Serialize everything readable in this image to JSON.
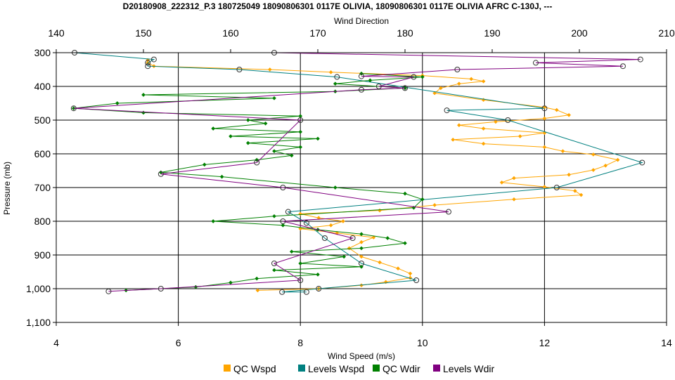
{
  "chart_data": {
    "type": "line",
    "title": "D20180908_222312_P.3 180725049 18090806301 0117E OLIVIA, 18090806301 0117E OLIVIA AFRC C-130J, ---",
    "xlabel_bottom": "Wind Speed (m/s)",
    "xlabel_top": "Wind Direction",
    "ylabel": "Pressure (mb)",
    "x_bottom_lim": [
      4,
      14
    ],
    "x_top_lim": [
      140,
      210
    ],
    "ylim": [
      300,
      1100
    ],
    "y_inverted": true,
    "grid": true,
    "legend_position": "bottom",
    "x_bottom_ticks": [
      "4",
      "6",
      "8",
      "10",
      "12",
      "14"
    ],
    "x_top_ticks": [
      "140",
      "150",
      "160",
      "170",
      "180",
      "190",
      "200",
      "210"
    ],
    "y_ticks": [
      "300",
      "400",
      "500",
      "600",
      "700",
      "800",
      "900",
      "1,000",
      "1,100"
    ],
    "colors": {
      "qc_wspd": "#FFA500",
      "levels_wspd": "#008080",
      "qc_wdir": "#008000",
      "levels_wdir": "#800080"
    },
    "series": [
      {
        "name": "QC Wspd",
        "axis": "bottom",
        "points": [
          [
            5.5,
            322
          ],
          [
            5.5,
            330
          ],
          [
            5.6,
            340
          ],
          [
            7.5,
            350
          ],
          [
            8.5,
            358
          ],
          [
            10.0,
            368
          ],
          [
            10.8,
            378
          ],
          [
            11.0,
            385
          ],
          [
            10.6,
            392
          ],
          [
            10.3,
            405
          ],
          [
            10.2,
            420
          ],
          [
            11.0,
            440
          ],
          [
            12.0,
            462
          ],
          [
            12.2,
            470
          ],
          [
            12.4,
            485
          ],
          [
            12.0,
            495
          ],
          [
            11.2,
            505
          ],
          [
            10.6,
            515
          ],
          [
            11.0,
            525
          ],
          [
            12.0,
            538
          ],
          [
            11.6,
            548
          ],
          [
            10.5,
            558
          ],
          [
            11.0,
            570
          ],
          [
            12.0,
            580
          ],
          [
            12.3,
            592
          ],
          [
            12.8,
            602
          ],
          [
            13.2,
            618
          ],
          [
            13.0,
            635
          ],
          [
            12.8,
            648
          ],
          [
            12.4,
            662
          ],
          [
            11.5,
            672
          ],
          [
            11.3,
            685
          ],
          [
            12.0,
            698
          ],
          [
            12.5,
            710
          ],
          [
            12.6,
            722
          ],
          [
            11.5,
            735
          ],
          [
            10.2,
            752
          ],
          [
            9.3,
            768
          ],
          [
            8.0,
            778
          ],
          [
            8.3,
            790
          ],
          [
            8.7,
            800
          ],
          [
            8.5,
            812
          ],
          [
            8.0,
            822
          ],
          [
            8.6,
            835
          ],
          [
            9.2,
            848
          ],
          [
            9.0,
            862
          ],
          [
            8.8,
            880
          ],
          [
            9.0,
            905
          ],
          [
            9.3,
            922
          ],
          [
            9.6,
            940
          ],
          [
            9.8,
            955
          ],
          [
            9.8,
            968
          ],
          [
            9.4,
            980
          ],
          [
            9.0,
            990
          ],
          [
            8.3,
            1000
          ],
          [
            7.3,
            1005
          ]
        ]
      },
      {
        "name": "Levels Wspd",
        "axis": "bottom",
        "points": [
          [
            4.3,
            300
          ],
          [
            5.6,
            320
          ],
          [
            5.5,
            330
          ],
          [
            5.5,
            340
          ],
          [
            7.0,
            350
          ],
          [
            8.6,
            372
          ],
          [
            12.0,
            465
          ],
          [
            10.4,
            471
          ],
          [
            11.4,
            500
          ],
          [
            13.6,
            626
          ],
          [
            12.2,
            700
          ],
          [
            7.8,
            772
          ],
          [
            8.1,
            805
          ],
          [
            8.4,
            850
          ],
          [
            9.0,
            925
          ],
          [
            9.9,
            975
          ],
          [
            8.3,
            1000
          ],
          [
            7.7,
            1010
          ],
          [
            8.1,
            1010
          ]
        ]
      },
      {
        "name": "QC Wdir",
        "axis": "top",
        "points": [
          [
            175,
            362
          ],
          [
            182,
            372
          ],
          [
            176,
            382
          ],
          [
            172,
            392
          ],
          [
            180,
            405
          ],
          [
            172,
            415
          ],
          [
            150,
            425
          ],
          [
            165,
            435
          ],
          [
            147,
            450
          ],
          [
            142,
            465
          ],
          [
            150,
            478
          ],
          [
            168,
            488
          ],
          [
            162,
            500
          ],
          [
            164,
            510
          ],
          [
            158,
            525
          ],
          [
            168,
            535
          ],
          [
            160,
            548
          ],
          [
            170,
            555
          ],
          [
            162,
            568
          ],
          [
            168,
            580
          ],
          [
            165,
            592
          ],
          [
            167,
            605
          ],
          [
            163,
            618
          ],
          [
            157,
            632
          ],
          [
            152,
            655
          ],
          [
            159,
            668
          ],
          [
            172,
            700
          ],
          [
            180,
            718
          ],
          [
            182,
            735
          ],
          [
            181,
            760
          ],
          [
            165,
            785
          ],
          [
            158,
            800
          ],
          [
            166,
            812
          ],
          [
            170,
            825
          ],
          [
            175,
            838
          ],
          [
            178,
            850
          ],
          [
            180,
            865
          ],
          [
            175,
            880
          ],
          [
            167,
            890
          ],
          [
            173,
            905
          ],
          [
            168,
            925
          ],
          [
            175,
            935
          ],
          [
            165,
            945
          ],
          [
            170,
            958
          ],
          [
            163,
            970
          ],
          [
            160,
            982
          ],
          [
            156,
            995
          ],
          [
            148,
            1005
          ]
        ]
      },
      {
        "name": "Levels Wdir",
        "axis": "top",
        "points": [
          [
            165,
            300
          ],
          [
            207,
            320
          ],
          [
            195,
            330
          ],
          [
            205,
            340
          ],
          [
            186,
            350
          ],
          [
            175,
            370
          ],
          [
            181,
            372
          ],
          [
            177,
            400
          ],
          [
            180,
            405
          ],
          [
            175,
            410
          ],
          [
            142,
            465
          ],
          [
            168,
            500
          ],
          [
            163,
            626
          ],
          [
            152,
            660
          ],
          [
            166,
            700
          ],
          [
            185,
            772
          ],
          [
            166,
            800
          ],
          [
            174,
            850
          ],
          [
            165,
            925
          ],
          [
            168,
            975
          ],
          [
            152,
            1000
          ],
          [
            146,
            1008
          ]
        ]
      }
    ]
  }
}
